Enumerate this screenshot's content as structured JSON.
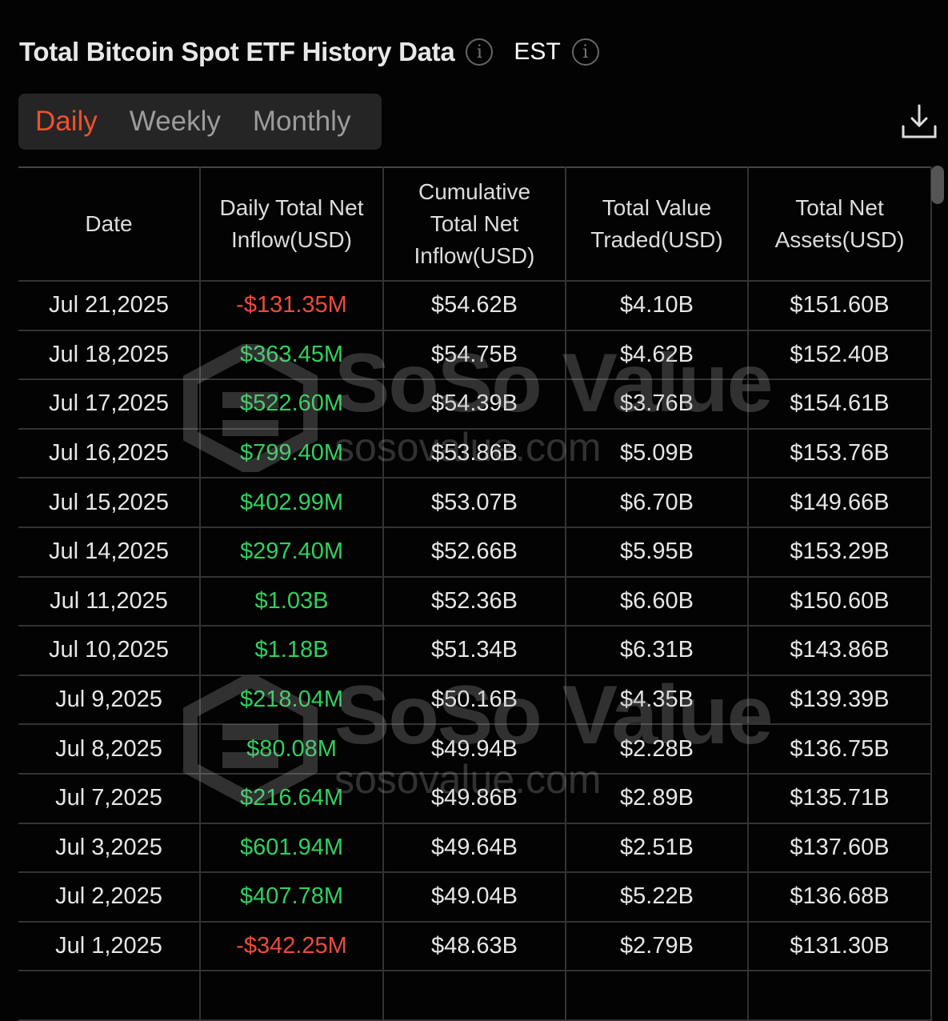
{
  "header": {
    "title": "Total Bitcoin Spot ETF History Data",
    "timezone": "EST",
    "icons": [
      "info-icon",
      "download-icon"
    ]
  },
  "tabs": [
    {
      "label": "Daily",
      "active": true
    },
    {
      "label": "Weekly",
      "active": false
    },
    {
      "label": "Monthly",
      "active": false
    }
  ],
  "colors": {
    "accent": "#f0502b",
    "positive": "#2fd15d",
    "negative": "#f04a3c"
  },
  "watermark": {
    "brand": "SoSo Value",
    "url": "sosovalue.com"
  },
  "table": {
    "columns": [
      "Date",
      "Daily Total Net Inflow(USD)",
      "Cumulative Total Net Inflow(USD)",
      "Total Value Traded(USD)",
      "Total Net Assets(USD)"
    ],
    "rows": [
      [
        "Jul 21,2025",
        "-$131.35M",
        "$54.62B",
        "$4.10B",
        "$151.60B"
      ],
      [
        "Jul 18,2025",
        "$363.45M",
        "$54.75B",
        "$4.62B",
        "$152.40B"
      ],
      [
        "Jul 17,2025",
        "$522.60M",
        "$54.39B",
        "$3.76B",
        "$154.61B"
      ],
      [
        "Jul 16,2025",
        "$799.40M",
        "$53.86B",
        "$5.09B",
        "$153.76B"
      ],
      [
        "Jul 15,2025",
        "$402.99M",
        "$53.07B",
        "$6.70B",
        "$149.66B"
      ],
      [
        "Jul 14,2025",
        "$297.40M",
        "$52.66B",
        "$5.95B",
        "$153.29B"
      ],
      [
        "Jul 11,2025",
        "$1.03B",
        "$52.36B",
        "$6.60B",
        "$150.60B"
      ],
      [
        "Jul 10,2025",
        "$1.18B",
        "$51.34B",
        "$6.31B",
        "$143.86B"
      ],
      [
        "Jul 9,2025",
        "$218.04M",
        "$50.16B",
        "$4.35B",
        "$139.39B"
      ],
      [
        "Jul 8,2025",
        "$80.08M",
        "$49.94B",
        "$2.28B",
        "$136.75B"
      ],
      [
        "Jul 7,2025",
        "$216.64M",
        "$49.86B",
        "$2.89B",
        "$135.71B"
      ],
      [
        "Jul 3,2025",
        "$601.94M",
        "$49.64B",
        "$2.51B",
        "$137.60B"
      ],
      [
        "Jul 2,2025",
        "$407.78M",
        "$49.04B",
        "$5.22B",
        "$136.68B"
      ],
      [
        "Jul 1,2025",
        "-$342.25M",
        "$48.63B",
        "$2.79B",
        "$131.30B"
      ]
    ]
  }
}
